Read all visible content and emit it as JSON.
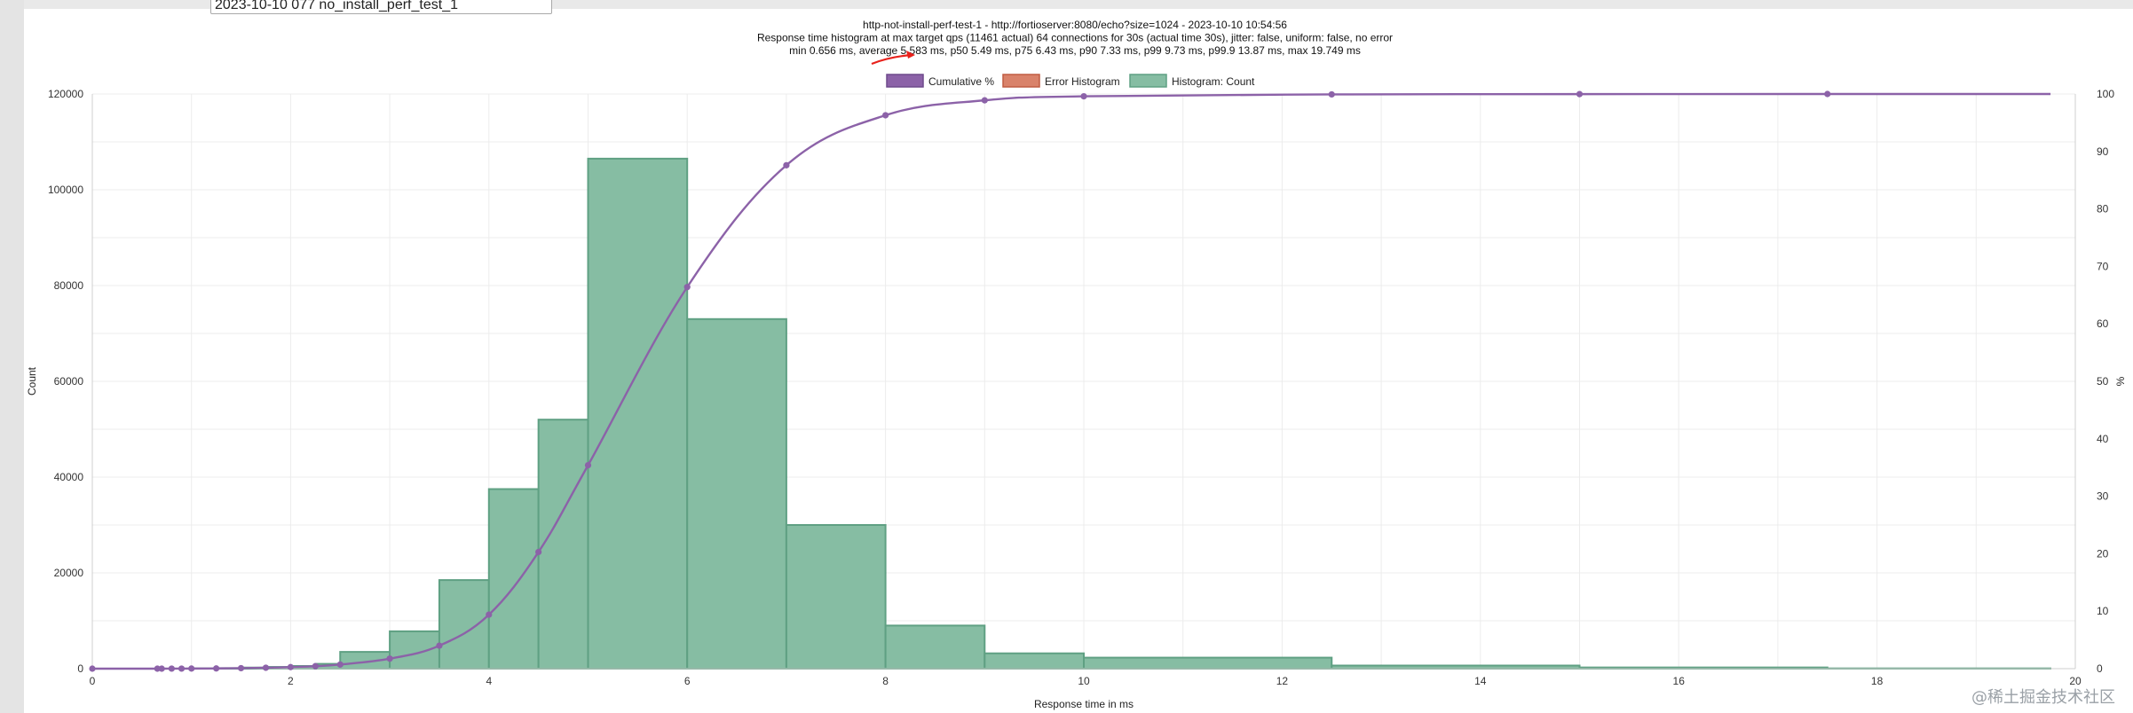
{
  "input": {
    "value": "2023-10-10 077 no_install_perf_test_1"
  },
  "watermark": "@稀土掘金技术社区",
  "chart_data": {
    "type": "bar",
    "title_lines": [
      "http-not-install-perf-test-1 - http://fortioserver:8080/echo?size=1024 - 2023-10-10 10:54:56",
      "Response time histogram at max target qps (11461 actual) 64 connections for 30s (actual time 30s), jitter: false, uniform: false, no error",
      "min 0.656 ms, average 5.583 ms, p50 5.49 ms, p75 6.43 ms, p90 7.33 ms, p99 9.73 ms, p99.9 13.87 ms, max 19.749 ms"
    ],
    "xlabel": "Response time in ms",
    "ylabel": "Count",
    "y2label": "%",
    "xlim": [
      0,
      20
    ],
    "ylim": [
      0,
      120000
    ],
    "y2lim": [
      0,
      100
    ],
    "xticks": [
      0,
      2,
      4,
      6,
      8,
      10,
      12,
      14,
      16,
      18,
      20
    ],
    "yticks": [
      0,
      20000,
      40000,
      60000,
      80000,
      100000,
      120000
    ],
    "y2ticks": [
      0,
      10,
      20,
      30,
      40,
      50,
      60,
      70,
      80,
      90,
      100
    ],
    "grid": true,
    "legend_position": "top-center",
    "legend": [
      {
        "label": "Cumulative %",
        "color": "#8c62a8"
      },
      {
        "label": "Error Histogram",
        "color": "#d9826a"
      },
      {
        "label": "Histogram: Count",
        "color": "#86bda3"
      }
    ],
    "histogram": [
      {
        "x0": 0.0,
        "x1": 0.656,
        "count": 0
      },
      {
        "x0": 0.656,
        "x1": 0.7,
        "count": 2
      },
      {
        "x0": 0.7,
        "x1": 0.8,
        "count": 5
      },
      {
        "x0": 0.8,
        "x1": 0.9,
        "count": 10
      },
      {
        "x0": 0.9,
        "x1": 1.0,
        "count": 15
      },
      {
        "x0": 1.0,
        "x1": 1.25,
        "count": 60
      },
      {
        "x0": 1.25,
        "x1": 1.5,
        "count": 110
      },
      {
        "x0": 1.5,
        "x1": 1.75,
        "count": 230
      },
      {
        "x0": 1.75,
        "x1": 2.0,
        "count": 360
      },
      {
        "x0": 2.0,
        "x1": 2.25,
        "count": 560
      },
      {
        "x0": 2.25,
        "x1": 2.5,
        "count": 1000
      },
      {
        "x0": 2.5,
        "x1": 3.0,
        "count": 3500
      },
      {
        "x0": 3.0,
        "x1": 3.5,
        "count": 7800
      },
      {
        "x0": 3.5,
        "x1": 4.0,
        "count": 18500
      },
      {
        "x0": 4.0,
        "x1": 4.5,
        "count": 37500
      },
      {
        "x0": 4.5,
        "x1": 5.0,
        "count": 52000
      },
      {
        "x0": 5.0,
        "x1": 6.0,
        "count": 106500
      },
      {
        "x0": 6.0,
        "x1": 7.0,
        "count": 73000
      },
      {
        "x0": 7.0,
        "x1": 8.0,
        "count": 30000
      },
      {
        "x0": 8.0,
        "x1": 9.0,
        "count": 9000
      },
      {
        "x0": 9.0,
        "x1": 10.0,
        "count": 3200
      },
      {
        "x0": 10.0,
        "x1": 12.5,
        "count": 2300
      },
      {
        "x0": 12.5,
        "x1": 15.0,
        "count": 650
      },
      {
        "x0": 15.0,
        "x1": 17.5,
        "count": 250
      },
      {
        "x0": 17.5,
        "x1": 19.749,
        "count": 60
      }
    ],
    "error_histogram": [],
    "cumulative": [
      {
        "x": 0.0,
        "y": 0
      },
      {
        "x": 0.656,
        "y": 0.0
      },
      {
        "x": 0.7,
        "y": 0.0
      },
      {
        "x": 0.8,
        "y": 0.01
      },
      {
        "x": 0.9,
        "y": 0.01
      },
      {
        "x": 1.0,
        "y": 0.02
      },
      {
        "x": 1.25,
        "y": 0.04
      },
      {
        "x": 1.5,
        "y": 0.09
      },
      {
        "x": 1.75,
        "y": 0.16
      },
      {
        "x": 2.0,
        "y": 0.27
      },
      {
        "x": 2.25,
        "y": 0.43
      },
      {
        "x": 2.5,
        "y": 0.72
      },
      {
        "x": 3.0,
        "y": 1.74
      },
      {
        "x": 3.5,
        "y": 4.0
      },
      {
        "x": 4.0,
        "y": 9.4
      },
      {
        "x": 4.5,
        "y": 20.3
      },
      {
        "x": 5.0,
        "y": 35.4
      },
      {
        "x": 6.0,
        "y": 66.4
      },
      {
        "x": 7.0,
        "y": 87.6
      },
      {
        "x": 8.0,
        "y": 96.3
      },
      {
        "x": 9.0,
        "y": 98.9
      },
      {
        "x": 10.0,
        "y": 99.6
      },
      {
        "x": 12.5,
        "y": 99.93
      },
      {
        "x": 15.0,
        "y": 99.98
      },
      {
        "x": 17.5,
        "y": 100.0
      }
    ]
  }
}
